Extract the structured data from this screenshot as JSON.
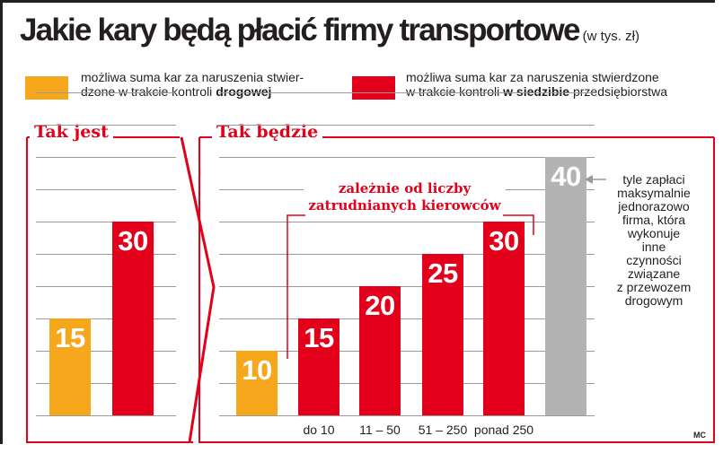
{
  "title": "Jakie kary będą płacić firmy transportowe",
  "unit": "(w tys. zł)",
  "legend": {
    "road": {
      "color": "#f6a71c",
      "line1": "możliwa suma kar za naruszenia stwier-",
      "line2": "dzone w trakcie kontroli ",
      "bold": "drogowej"
    },
    "office": {
      "color": "#e2001a",
      "line1": "możliwa suma kar za naruszenia stwierdzone",
      "line2": "w trakcie kontroli ",
      "bold": "w siedzibie",
      "tail": " przedsiębiorstwa"
    }
  },
  "colors": {
    "orange": "#f6a71c",
    "red": "#e2001a",
    "gray": "#b3b3b3",
    "frame": "#e2001a"
  },
  "annotations": {
    "group_line1": "zależnie od liczby",
    "group_line2": "zatrudnianych kierowców",
    "max_note": [
      "tyle zapłaci",
      "maksymalnie",
      "jednorazowo",
      "firma, która",
      "wykonuje",
      "inne",
      "czynności",
      "związane",
      "z przewozem",
      "drogowym"
    ]
  },
  "credit": "MC",
  "chart_data": [
    {
      "type": "bar",
      "title": "Tak jest",
      "ylim": [
        0,
        50
      ],
      "grid": true,
      "categories": [
        "",
        ""
      ],
      "series": [
        {
          "name": "możliwa suma kar za naruszenia stwierdzone w trakcie kontroli drogowej",
          "color": "#f6a71c",
          "values": [
            15,
            null
          ]
        },
        {
          "name": "możliwa suma kar za naruszenia stwierdzone w trakcie kontroli w siedzibie przedsiębiorstwa",
          "color": "#e2001a",
          "values": [
            null,
            30
          ]
        }
      ],
      "bars": [
        {
          "category": "",
          "value": 15,
          "label": "15",
          "color": "#f6a71c"
        },
        {
          "category": "",
          "value": 30,
          "label": "30",
          "color": "#e2001a"
        }
      ]
    },
    {
      "type": "bar",
      "title": "Tak będzie",
      "ylim": [
        0,
        50
      ],
      "grid": true,
      "categories": [
        "",
        "do 10",
        "11 – 50",
        "51 – 250",
        "ponad 250",
        ""
      ],
      "series": [
        {
          "name": "możliwa suma kar za naruszenia stwierdzone w trakcie kontroli drogowej",
          "color": "#f6a71c",
          "values": [
            10,
            null,
            null,
            null,
            null,
            null
          ]
        },
        {
          "name": "możliwa suma kar za naruszenia stwierdzone w trakcie kontroli w siedzibie przedsiębiorstwa",
          "color": "#e2001a",
          "values": [
            null,
            15,
            20,
            25,
            30,
            null
          ]
        },
        {
          "color": "#b3b3b3",
          "values": [
            null,
            null,
            null,
            null,
            null,
            40
          ]
        }
      ],
      "bars": [
        {
          "category": "",
          "value": 10,
          "label": "10",
          "color": "#f6a71c"
        },
        {
          "category": "do 10",
          "value": 15,
          "label": "15",
          "color": "#e2001a"
        },
        {
          "category": "11 – 50",
          "value": 20,
          "label": "20",
          "color": "#e2001a"
        },
        {
          "category": "51 – 250",
          "value": 25,
          "label": "25",
          "color": "#e2001a"
        },
        {
          "category": "ponad 250",
          "value": 30,
          "label": "30",
          "color": "#e2001a"
        },
        {
          "category": "",
          "value": 40,
          "label": "40",
          "color": "#b3b3b3"
        }
      ]
    }
  ]
}
